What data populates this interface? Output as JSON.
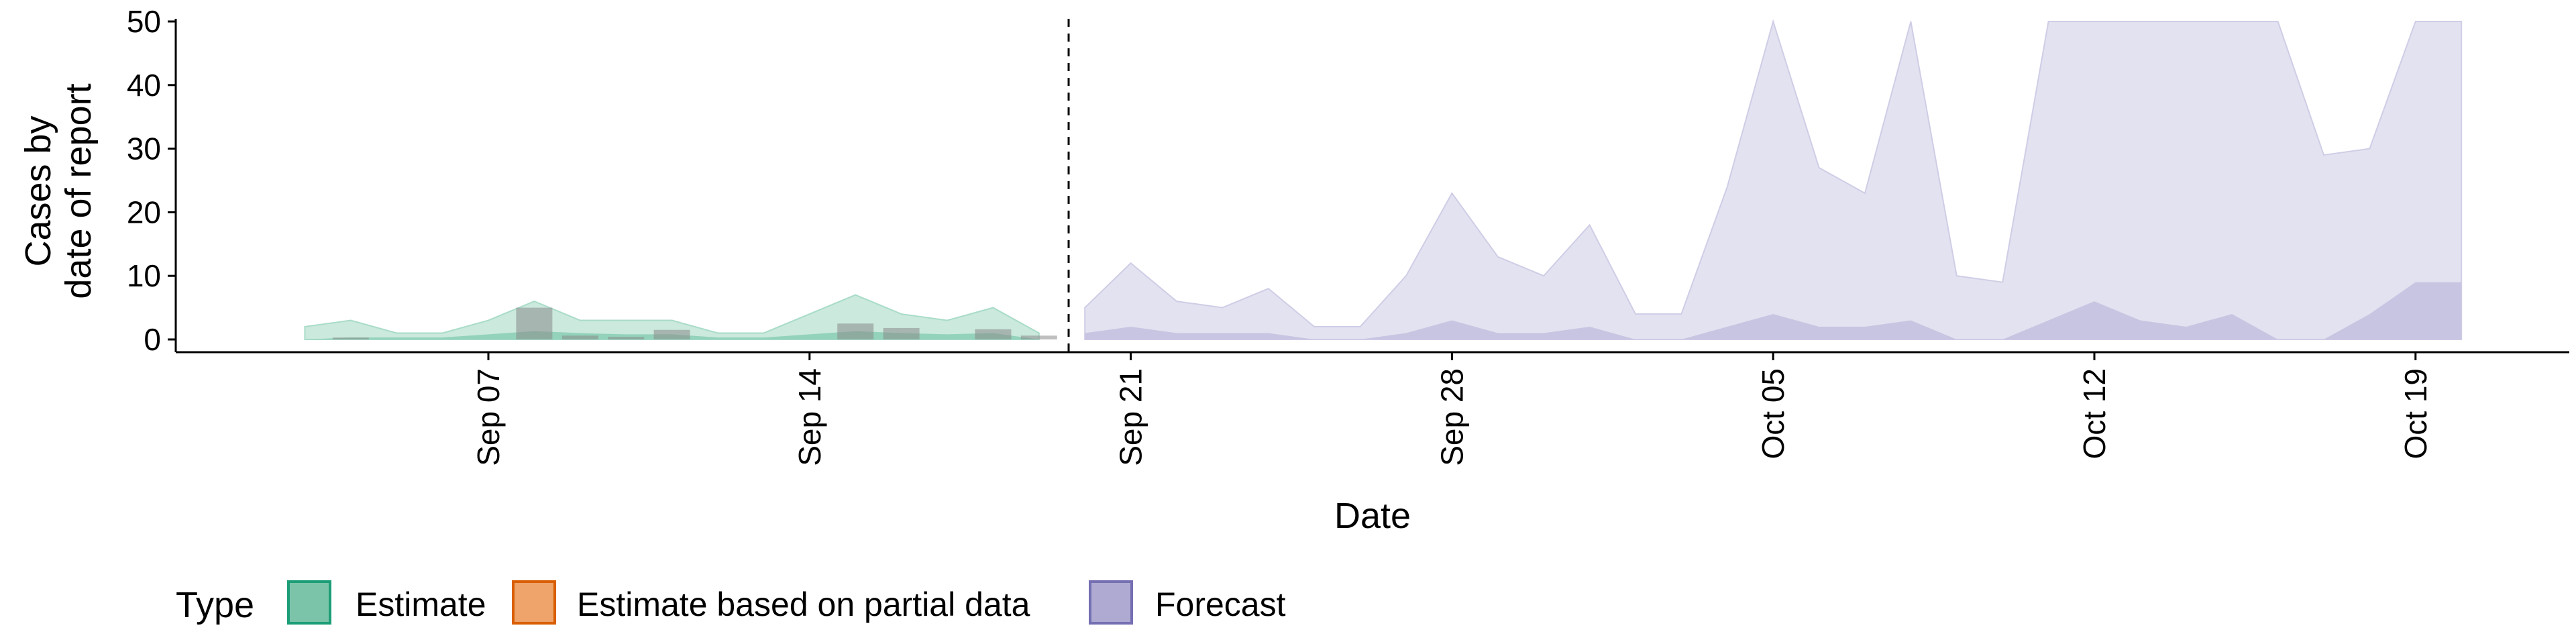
{
  "chart_data": {
    "type": "area",
    "xlabel": "Date",
    "ylabel_lines": [
      "Cases by",
      "date of report"
    ],
    "x_ticks": [
      "Sep 07",
      "Sep 14",
      "Sep 21",
      "Sep 28",
      "Oct 05",
      "Oct 12",
      "Oct 19"
    ],
    "x_range": [
      "2020-09-03",
      "2020-10-21"
    ],
    "y_ticks": [
      0,
      10,
      20,
      30,
      40,
      50
    ],
    "ylim": [
      0,
      52
    ],
    "forecast_start": "2020-09-20",
    "legend": {
      "title": "Type",
      "position": "bottom",
      "items": [
        {
          "label": "Estimate",
          "fill": "#7cc4a9",
          "stroke": "#1b9e77"
        },
        {
          "label": "Estimate based on partial data",
          "fill": "#eea46b",
          "stroke": "#d95f02"
        },
        {
          "label": "Forecast",
          "fill": "#aeaad2",
          "stroke": "#7570b3"
        }
      ]
    },
    "colors": {
      "estimate_outer": "#cbe9dd",
      "estimate_inner": "#93d2bb",
      "forecast_outer": "#e3e2f0",
      "forecast_inner": "#c8c5e2",
      "bars": "#8a8a8a"
    },
    "reported_cases": [
      {
        "date": "2020-09-04",
        "value": 0.3
      },
      {
        "date": "2020-09-08",
        "value": 5
      },
      {
        "date": "2020-09-09",
        "value": 0.6
      },
      {
        "date": "2020-09-10",
        "value": 0.4
      },
      {
        "date": "2020-09-11",
        "value": 1.5
      },
      {
        "date": "2020-09-15",
        "value": 2.5
      },
      {
        "date": "2020-09-16",
        "value": 1.8
      },
      {
        "date": "2020-09-18",
        "value": 1.6
      },
      {
        "date": "2020-09-19",
        "value": 0.6
      }
    ],
    "series": [
      {
        "kind": "estimate",
        "x": [
          "2020-09-03",
          "2020-09-04",
          "2020-09-05",
          "2020-09-06",
          "2020-09-07",
          "2020-09-08",
          "2020-09-09",
          "2020-09-10",
          "2020-09-11",
          "2020-09-12",
          "2020-09-13",
          "2020-09-14",
          "2020-09-15",
          "2020-09-16",
          "2020-09-17",
          "2020-09-18",
          "2020-09-19"
        ],
        "outer_upper": [
          2,
          3,
          1,
          1,
          3,
          6,
          3,
          3,
          3,
          1,
          1,
          4,
          7,
          4,
          3,
          5,
          1
        ],
        "inner_upper": [
          0,
          0.3,
          0.3,
          0.3,
          0.8,
          1.3,
          1,
          0.8,
          0.8,
          0.3,
          0.3,
          0.8,
          1.3,
          1,
          0.8,
          1,
          0
        ]
      },
      {
        "kind": "forecast",
        "x": [
          "2020-09-20",
          "2020-09-21",
          "2020-09-22",
          "2020-09-23",
          "2020-09-24",
          "2020-09-25",
          "2020-09-26",
          "2020-09-27",
          "2020-09-28",
          "2020-09-29",
          "2020-09-30",
          "2020-10-01",
          "2020-10-02",
          "2020-10-03",
          "2020-10-04",
          "2020-10-05",
          "2020-10-06",
          "2020-10-07",
          "2020-10-08",
          "2020-10-09",
          "2020-10-10",
          "2020-10-11",
          "2020-10-12",
          "2020-10-13",
          "2020-10-14",
          "2020-10-15",
          "2020-10-16",
          "2020-10-17",
          "2020-10-18",
          "2020-10-19",
          "2020-10-20"
        ],
        "outer_upper": [
          5,
          12,
          6,
          5,
          8,
          2,
          2,
          10,
          23,
          13,
          10,
          18,
          4,
          4,
          24,
          50,
          27,
          23,
          50,
          10,
          9,
          50,
          50,
          50,
          50,
          50,
          50,
          29,
          30,
          50,
          50
        ],
        "inner_upper": [
          1,
          2,
          1,
          1,
          1,
          0,
          0,
          1,
          3,
          1,
          1,
          2,
          0,
          0,
          2,
          4,
          2,
          2,
          3,
          0,
          0,
          3,
          6,
          3,
          2,
          4,
          0,
          0,
          4,
          9,
          9
        ]
      }
    ]
  }
}
